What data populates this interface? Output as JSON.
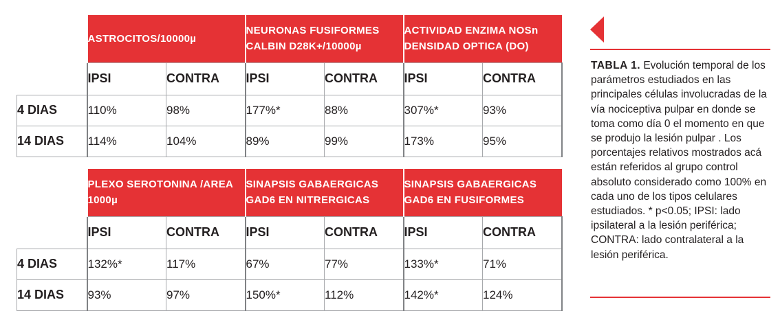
{
  "table1": {
    "groups": [
      {
        "title": "ASTROCITOS/10000µ"
      },
      {
        "title": "NEURONAS FUSIFORMES CALBIN D28K+/10000µ"
      },
      {
        "title": "ACTIVIDAD ENZIMA NOSn DENSIDAD OPTICA (DO)"
      }
    ],
    "subheaders": [
      "IPSI",
      "CONTRA",
      "IPSI",
      "CONTRA",
      "IPSI",
      "CONTRA"
    ],
    "rows": [
      {
        "label": "4 DIAS",
        "values": [
          "110%",
          "98%",
          "177%*",
          "88%",
          "307%*",
          "93%"
        ]
      },
      {
        "label": "14 DIAS",
        "values": [
          "114%",
          "104%",
          "89%",
          "99%",
          "173%",
          "95%"
        ]
      }
    ]
  },
  "table2": {
    "groups": [
      {
        "title": "PLEXO SEROTONINA /AREA 1000µ"
      },
      {
        "title": "SINAPSIS GABAERGICAS GAD6 EN NITRERGICAS"
      },
      {
        "title": "SINAPSIS GABAERGICAS GAD6 EN FUSIFORMES"
      }
    ],
    "subheaders": [
      "IPSI",
      "CONTRA",
      "IPSI",
      "CONTRA",
      "IPSI",
      "CONTRA"
    ],
    "rows": [
      {
        "label": "4 DIAS",
        "values": [
          "132%*",
          "117%",
          "67%",
          "77%",
          "133%*",
          "71%"
        ]
      },
      {
        "label": "14 DIAS",
        "values": [
          "93%",
          "97%",
          "150%*",
          "112%",
          "142%*",
          "124%"
        ]
      }
    ]
  },
  "caption": {
    "label": "TABLA 1.",
    "text": "Evolución temporal de los parámetros estudiados en las principales células involucradas de la vía nociceptiva pulpar en donde se toma como día 0 el momento en que se produjo la lesión pulpar . Los porcentajes relativos mostrados acá están referidos al grupo control absoluto considerado como 100% en cada uno de los tipos celulares estudiados. * p<0.05; IPSI: lado ipsilateral a la lesión periférica; CONTRA: lado contralateral a la lesión periférica."
  },
  "colors": {
    "accent": "#e53235",
    "grid": "#a7a9ac",
    "text": "#231f20"
  }
}
